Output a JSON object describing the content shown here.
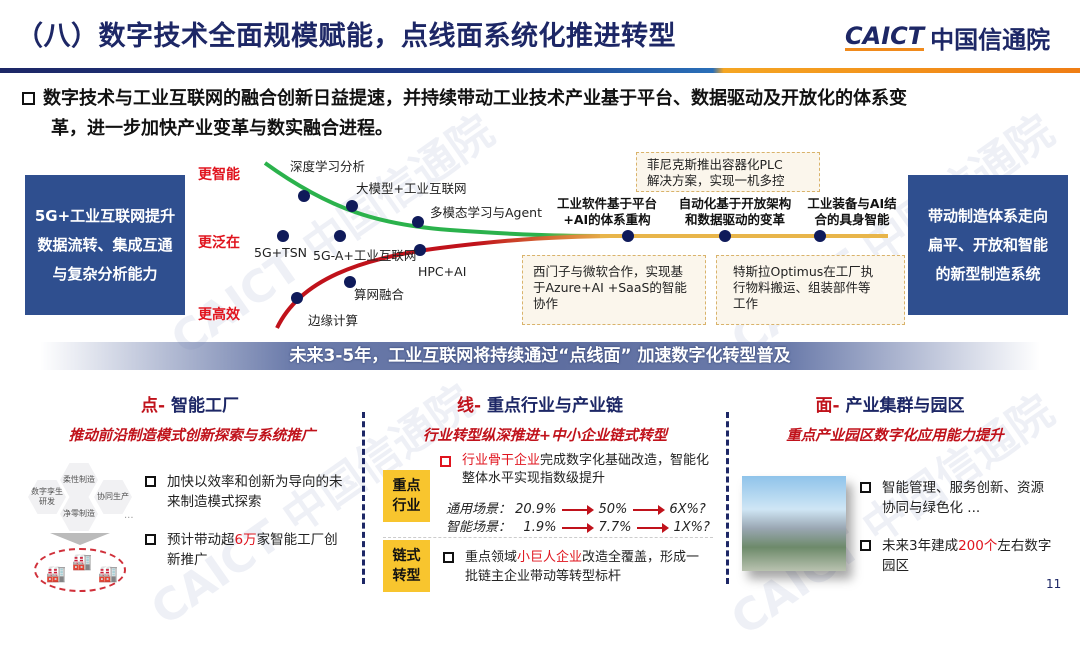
{
  "header": {
    "title": "（八）数字技术全面规模赋能，点线面系统化推进转型",
    "logo_en": "CAICT",
    "logo_cn": "中国信通院"
  },
  "lead": {
    "line1": "数字技术与工业互联网的融合创新日益提速，并持续带动工业技术产业基于平台、数据驱动及开放化的体系变",
    "line2": "革，进一步加快产业变革与数实融合进程。"
  },
  "diagram": {
    "left_box": [
      "5G+工业互联网提升",
      "数据流转、集成互通",
      "与复杂分析能力"
    ],
    "right_box": [
      "带动制造体系走向",
      "扁平、开放和智能",
      "的新型制造系统"
    ],
    "directions": {
      "smart": "更智能",
      "ubiquitous": "更泛在",
      "efficient": "更高效"
    },
    "green_labels": [
      "深度学习分析",
      "大模型+工业互联网",
      "多模态学习与Agent"
    ],
    "blue_labels": [
      "5G+TSN",
      "5G-A+工业互联网"
    ],
    "red_labels": [
      "HPC+AI",
      "算网融合",
      "边缘计算"
    ],
    "milestones": [
      [
        "工业软件基于平台",
        "+AI的体系重构"
      ],
      [
        "自动化基于开放架构",
        "和数据驱动的变革"
      ],
      [
        "工业装备与AI结",
        "合的具身智能"
      ]
    ],
    "cases": [
      [
        "菲尼克斯推出容器化PLC",
        "解决方案，实现一机多控"
      ],
      [
        "西门子与微软合作，实现基",
        "于Azure+AI +SaaS的智能",
        "协作"
      ],
      [
        "特斯拉Optimus在工厂执",
        "行物料搬运、组装部件等",
        "工作"
      ]
    ],
    "colors": {
      "green": "#2bb24c",
      "blue": "#1c3fe0",
      "red": "#c0121b",
      "gold": "#e8b54a",
      "dot": "#0f1a5a"
    }
  },
  "banner": "未来3-5年，工业互联网将持续通过“点线面” 加速数字化转型普及",
  "columns": {
    "point": {
      "prefix": "点-",
      "title": " 智能工厂",
      "subtitle": "推动前沿制造模式创新探索与系统推广",
      "hexes": [
        "柔性制造",
        "数字孪生研发",
        "协同生产",
        "净零制造"
      ],
      "ellipsis": "...",
      "b1": "加快以效率和创新为导向的未来制造模式探索",
      "b2_pre": "预计带动超",
      "b2_hl": "6万",
      "b2_post": "家智能工厂创新推广"
    },
    "line": {
      "prefix": "线-",
      "title": " 重点行业与产业链",
      "subtitle": "行业转型纵深推进+中小企业链式转型",
      "box1": [
        "重点",
        "行业"
      ],
      "box2": [
        "链式",
        "转型"
      ],
      "b1_hl": "行业骨干企业",
      "b1_post": "完成数字化基础改造，智能化整体水平实现指数级提升",
      "stats": [
        {
          "label": "通用场景：",
          "v": [
            "20.9%",
            "50%",
            "6X%?"
          ]
        },
        {
          "label": "智能场景：",
          "v": [
            "1.9%",
            "7.7%",
            "1X%?"
          ]
        }
      ],
      "b2_pre": "重点领域",
      "b2_hl": "小巨人企业",
      "b2_post": "改造全覆盖，形成一批链主企业带动等转型标杆"
    },
    "area": {
      "prefix": "面-",
      "title": " 产业集群与园区",
      "subtitle": "重点产业园区数字化应用能力提升",
      "b1": "智能管理、服务创新、资源协同与绿色化 ...",
      "b2_pre": "未来3年建成",
      "b2_hl": "200个",
      "b2_post": "左右数字园区"
    }
  },
  "page_number": "11",
  "watermark": "CAICT 中国信通院"
}
